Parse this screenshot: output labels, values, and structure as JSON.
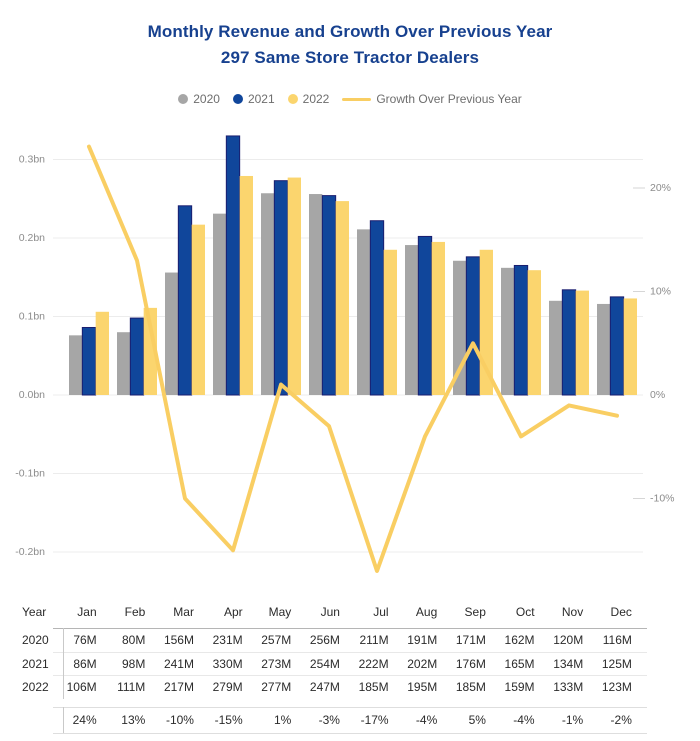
{
  "title": {
    "line1": "Monthly Revenue and Growth Over Previous Year",
    "line2": "297 Same Store Tractor Dealers"
  },
  "legend": [
    {
      "label": "2020",
      "swatch": "dot",
      "color": "#A6A6A6"
    },
    {
      "label": "2021",
      "swatch": "dot",
      "color": "#10469B"
    },
    {
      "label": "2022",
      "swatch": "dot",
      "color": "#FBD56E"
    },
    {
      "label": "Growth Over Previous Year",
      "swatch": "line",
      "color": "#F9CE63"
    }
  ],
  "chart_data": {
    "type": "bar+line combo",
    "title": "Monthly Revenue and Growth Over Previous Year",
    "subtitle": "297 Same Store Tractor Dealers",
    "categories": [
      "Jan",
      "Feb",
      "Mar",
      "Apr",
      "May",
      "Jun",
      "Jul",
      "Aug",
      "Sep",
      "Oct",
      "Nov",
      "Dec"
    ],
    "series": [
      {
        "name": "2020",
        "type": "bar",
        "axis": "left",
        "color": "#A6A6A6",
        "stroke": "none",
        "values_millions": [
          76,
          80,
          156,
          231,
          257,
          256,
          211,
          191,
          171,
          162,
          120,
          116
        ]
      },
      {
        "name": "2021",
        "type": "bar",
        "axis": "left",
        "color": "#10469B",
        "stroke": "#1A1E70",
        "values_millions": [
          86,
          98,
          241,
          330,
          273,
          254,
          222,
          202,
          176,
          165,
          134,
          125
        ]
      },
      {
        "name": "2022",
        "type": "bar",
        "axis": "left",
        "color": "#FBD56E",
        "stroke": "none",
        "values_millions": [
          106,
          111,
          217,
          279,
          277,
          247,
          185,
          195,
          185,
          159,
          133,
          123
        ]
      },
      {
        "name": "Growth Over Previous Year",
        "type": "line",
        "axis": "right",
        "color": "#F9CE63",
        "values_percent": [
          24,
          13,
          -10,
          -15,
          1,
          -3,
          -17,
          -4,
          5,
          -4,
          -1,
          -2
        ]
      }
    ],
    "left_axis": {
      "unit": "bn",
      "ticks": [
        {
          "label": "0.3bn",
          "value_bn": 0.3
        },
        {
          "label": "0.2bn",
          "value_bn": 0.2
        },
        {
          "label": "0.1bn",
          "value_bn": 0.1
        },
        {
          "label": "0.0bn",
          "value_bn": 0.0
        },
        {
          "label": "-0.1bn",
          "value_bn": -0.1
        },
        {
          "label": "-0.2bn",
          "value_bn": -0.2
        }
      ]
    },
    "right_axis": {
      "unit": "%",
      "ticks": [
        {
          "label": "20%",
          "value_pct": 20
        },
        {
          "label": "10%",
          "value_pct": 10
        },
        {
          "label": "0%",
          "value_pct": 0
        },
        {
          "label": "-10%",
          "value_pct": -10
        }
      ]
    },
    "grid": true,
    "legend_position": "top"
  },
  "table": {
    "row_header": "Year",
    "columns": [
      "Jan",
      "Feb",
      "Mar",
      "Apr",
      "May",
      "Jun",
      "Jul",
      "Aug",
      "Sep",
      "Oct",
      "Nov",
      "Dec"
    ],
    "rows": [
      {
        "label": "2020",
        "values": [
          "76M",
          "80M",
          "156M",
          "231M",
          "257M",
          "256M",
          "211M",
          "191M",
          "171M",
          "162M",
          "120M",
          "116M"
        ]
      },
      {
        "label": "2021",
        "values": [
          "86M",
          "98M",
          "241M",
          "330M",
          "273M",
          "254M",
          "222M",
          "202M",
          "176M",
          "165M",
          "134M",
          "125M"
        ]
      },
      {
        "label": "2022",
        "values": [
          "106M",
          "111M",
          "217M",
          "279M",
          "277M",
          "247M",
          "185M",
          "195M",
          "185M",
          "159M",
          "133M",
          "123M"
        ]
      }
    ],
    "growth_row": {
      "label": "",
      "values": [
        "24%",
        "13%",
        "-10%",
        "-15%",
        "1%",
        "-3%",
        "-17%",
        "-4%",
        "5%",
        "-4%",
        "-1%",
        "-2%"
      ]
    }
  },
  "colors": {
    "title": "#17418F",
    "bar_2020": "#A6A6A6",
    "bar_2021": "#10469B",
    "bar_2021_stroke": "#1A1E70",
    "bar_2022": "#FBD56E",
    "growth_line": "#F9CE63",
    "grid": "#ECECEC",
    "right_tick_dash": "#D6D6D6",
    "axis_text": "#8C8C8C",
    "table_text": "#2B2B2B"
  }
}
